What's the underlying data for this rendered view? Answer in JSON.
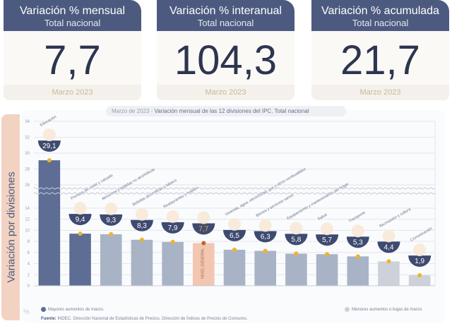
{
  "cards": [
    {
      "title": "Variación % mensual",
      "subtitle": "Total nacional",
      "value": "7,7",
      "date": "Marzo 2023"
    },
    {
      "title": "Variación % interanual",
      "subtitle": "Total nacional",
      "value": "104,3",
      "date": "Marzo 2023"
    },
    {
      "title": "Variación % acumulada",
      "subtitle": "Total nacional",
      "value": "21,7",
      "date": "Marzo 2023"
    }
  ],
  "chart_title_date": "Marzo de 2023 - ",
  "chart_title_main": "Variación mensual de las 12 divisiones del IPC. Total nacional",
  "y_axis_label": "Variación por divisiones",
  "unit_label": "%",
  "legend": {
    "high": "Mayores aumentos de marzo.",
    "low": "Menores aumentos o bajas de marzo."
  },
  "source_label": "Fuente:",
  "source_text": " INDEC. Dirección Nacional de Estadísticas de Precios. Dirección de Índices de Precios de Consumo.",
  "colors": {
    "high": "#5d6d94",
    "mid": "#a9b3c6",
    "low": "#cdd1d9",
    "general": "#f2c6b0",
    "badge": "#3e4a70",
    "dot": "#f0b429",
    "dot_general": "#c8612a",
    "accent": "#e07b39"
  },
  "chart_data": {
    "type": "bar",
    "title": "Marzo de 2023 - Variación mensual de las 12 divisiones del IPC. Total nacional",
    "xlabel": "",
    "ylabel": "Variación por divisiones (%)",
    "axis_break": [
      14,
      26
    ],
    "ylim": [
      0,
      34
    ],
    "yticks": [
      0,
      2,
      4,
      6,
      8,
      10,
      12,
      14,
      26,
      28,
      30,
      32,
      34
    ],
    "grid": true,
    "categories": [
      "Educación",
      "Prendas de vestir y calzado",
      "Alimentos y bebidas no alcohólicas",
      "Bebidas alcohólicas y tabaco",
      "Restaurantes y hoteles",
      "NIVEL GENERAL",
      "Vivienda, agua, electricidad, gas y otros combustibles",
      "Bienes y servicios varios",
      "Equipamiento y mantenimiento del hogar",
      "Salud",
      "Transporte",
      "Recreación y cultura",
      "Comunicación"
    ],
    "values": [
      29.1,
      9.4,
      9.3,
      8.3,
      7.9,
      7.7,
      6.5,
      6.3,
      5.8,
      5.7,
      5.3,
      4.4,
      1.9
    ],
    "value_labels": [
      "29,1",
      "9,4",
      "9,3",
      "8,3",
      "7,9",
      "7,7",
      "6,5",
      "6,3",
      "5,8",
      "5,7",
      "5,3",
      "4,4",
      "1,9"
    ],
    "groups": [
      "high",
      "high",
      "mid",
      "mid",
      "mid",
      "general",
      "mid",
      "mid",
      "mid",
      "mid",
      "mid",
      "low",
      "low"
    ],
    "legend": [
      "Mayores aumentos de marzo.",
      "Menores aumentos o bajas de marzo."
    ],
    "legend_position": "bottom"
  }
}
